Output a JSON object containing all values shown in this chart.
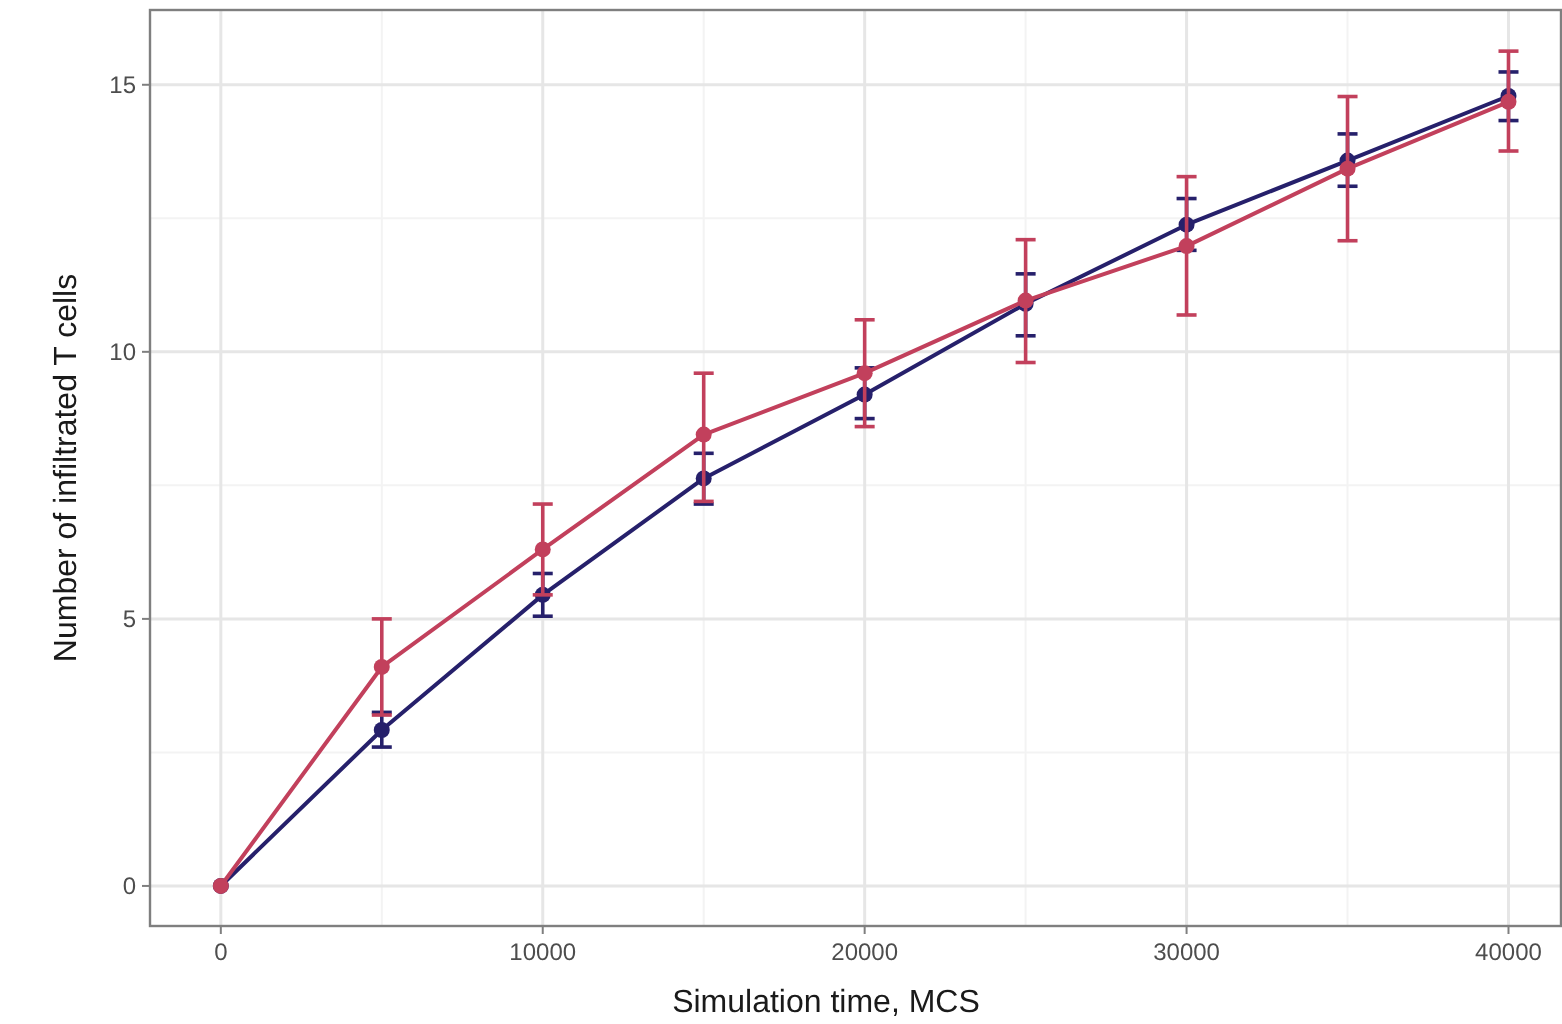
{
  "chart_data": {
    "type": "line",
    "xlabel": "Simulation time, MCS",
    "ylabel": "Number of infiltrated T cells",
    "x": [
      0,
      5000,
      10000,
      15000,
      20000,
      25000,
      30000,
      35000,
      40000
    ],
    "series": [
      {
        "color": "#26206b",
        "values": [
          0,
          2.92,
          5.45,
          7.63,
          9.2,
          10.9,
          12.38,
          13.58,
          14.79
        ],
        "errors": [
          null,
          [
            2.6,
            3.25
          ],
          [
            5.05,
            5.85
          ],
          [
            7.15,
            8.1
          ],
          [
            8.75,
            9.7
          ],
          [
            10.3,
            11.46
          ],
          [
            11.9,
            12.87
          ],
          [
            13.1,
            14.08
          ],
          [
            14.33,
            15.24
          ]
        ]
      },
      {
        "color": "#c2405c",
        "values": [
          0,
          4.1,
          6.3,
          8.45,
          9.6,
          10.96,
          11.98,
          13.43,
          14.68
        ],
        "errors": [
          null,
          [
            3.2,
            5.0
          ],
          [
            5.45,
            7.15
          ],
          [
            7.2,
            9.6
          ],
          [
            8.6,
            10.6
          ],
          [
            9.8,
            12.1
          ],
          [
            10.69,
            13.28
          ],
          [
            12.08,
            14.78
          ],
          [
            13.76,
            15.63
          ]
        ]
      }
    ],
    "xlim": [
      -2200,
      41600
    ],
    "ylim": [
      -0.75,
      16.4
    ],
    "xticks": [
      0,
      10000,
      20000,
      30000,
      40000
    ],
    "yticks": [
      0,
      5,
      10,
      15
    ],
    "grid": true,
    "marker": "circle",
    "line_style": "solid"
  }
}
